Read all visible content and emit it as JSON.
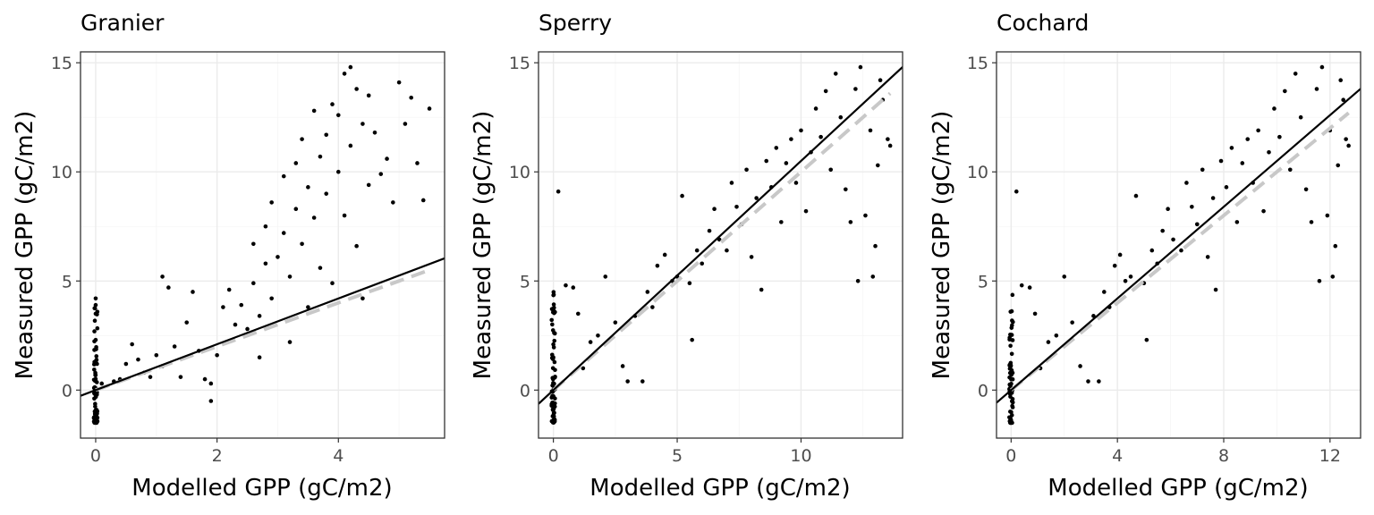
{
  "figure": {
    "ylabel": "Measured GPP (gC/m2)",
    "xlabel": "Modelled GPP (gC/m2)"
  },
  "chart_data": [
    {
      "type": "scatter",
      "title": "Granier",
      "xlabel": "Modelled GPP (gC/m2)",
      "ylabel": "Measured GPP (gC/m2)",
      "xlim": [
        -0.25,
        5.75
      ],
      "ylim": [
        -2.2,
        15.5
      ],
      "xticks": [
        0,
        2,
        4
      ],
      "yticks": [
        0,
        5,
        10,
        15
      ],
      "grid": true,
      "identity_line": {
        "slope": 1,
        "intercept": 0,
        "x_range": [
          0,
          5.45
        ],
        "color": "#c8c8c8",
        "style": "dashed"
      },
      "fit_line": {
        "slope": 1.05,
        "intercept": 0.0,
        "color": "#000000",
        "style": "solid"
      },
      "zero_cluster": {
        "x": 0.0,
        "y_range": [
          -1.5,
          4.2
        ]
      },
      "points": [
        [
          0.0,
          4.2
        ],
        [
          0.0,
          3.9
        ],
        [
          0.0,
          3.5
        ],
        [
          0.0,
          2.3
        ],
        [
          0.1,
          0.3
        ],
        [
          0.3,
          0.4
        ],
        [
          0.4,
          0.5
        ],
        [
          0.5,
          1.2
        ],
        [
          0.6,
          2.1
        ],
        [
          0.7,
          1.4
        ],
        [
          0.8,
          0.8
        ],
        [
          0.9,
          0.6
        ],
        [
          1.0,
          1.6
        ],
        [
          1.1,
          1.1
        ],
        [
          1.1,
          5.2
        ],
        [
          1.2,
          4.7
        ],
        [
          1.3,
          2.0
        ],
        [
          1.4,
          0.6
        ],
        [
          1.5,
          3.1
        ],
        [
          1.6,
          4.5
        ],
        [
          1.7,
          1.8
        ],
        [
          1.8,
          0.5
        ],
        [
          1.9,
          0.3
        ],
        [
          1.9,
          -0.5
        ],
        [
          2.0,
          1.6
        ],
        [
          2.1,
          3.8
        ],
        [
          2.2,
          4.6
        ],
        [
          2.3,
          3.0
        ],
        [
          2.4,
          3.9
        ],
        [
          2.5,
          2.8
        ],
        [
          2.6,
          4.9
        ],
        [
          2.6,
          6.7
        ],
        [
          2.7,
          3.4
        ],
        [
          2.7,
          1.5
        ],
        [
          2.8,
          5.8
        ],
        [
          2.8,
          7.5
        ],
        [
          2.9,
          4.2
        ],
        [
          2.9,
          8.6
        ],
        [
          3.0,
          6.1
        ],
        [
          3.1,
          9.8
        ],
        [
          3.1,
          7.2
        ],
        [
          3.2,
          2.2
        ],
        [
          3.2,
          5.2
        ],
        [
          3.3,
          8.3
        ],
        [
          3.3,
          10.4
        ],
        [
          3.4,
          6.7
        ],
        [
          3.4,
          11.5
        ],
        [
          3.5,
          9.3
        ],
        [
          3.5,
          3.8
        ],
        [
          3.6,
          12.8
        ],
        [
          3.6,
          7.9
        ],
        [
          3.7,
          10.7
        ],
        [
          3.7,
          5.6
        ],
        [
          3.8,
          11.7
        ],
        [
          3.8,
          9.0
        ],
        [
          3.9,
          13.1
        ],
        [
          3.9,
          4.9
        ],
        [
          4.0,
          10.0
        ],
        [
          4.0,
          12.6
        ],
        [
          4.1,
          14.5
        ],
        [
          4.1,
          8.0
        ],
        [
          4.2,
          14.8
        ],
        [
          4.2,
          11.2
        ],
        [
          4.3,
          13.8
        ],
        [
          4.3,
          6.6
        ],
        [
          4.4,
          12.2
        ],
        [
          4.4,
          4.2
        ],
        [
          4.5,
          13.5
        ],
        [
          4.5,
          9.4
        ],
        [
          4.6,
          11.8
        ],
        [
          4.7,
          9.9
        ],
        [
          4.8,
          10.6
        ],
        [
          4.9,
          8.6
        ],
        [
          5.0,
          14.1
        ],
        [
          5.1,
          12.2
        ],
        [
          5.2,
          13.4
        ],
        [
          5.3,
          10.4
        ],
        [
          5.4,
          8.7
        ],
        [
          5.5,
          12.9
        ]
      ]
    },
    {
      "type": "scatter",
      "title": "Sperry",
      "xlabel": "Modelled GPP (gC/m2)",
      "ylabel": "Measured GPP (gC/m2)",
      "xlim": [
        -0.6,
        14.1
      ],
      "ylim": [
        -2.2,
        15.5
      ],
      "xticks": [
        0,
        5,
        10
      ],
      "yticks": [
        0,
        5,
        10,
        15
      ],
      "grid": true,
      "identity_line": {
        "slope": 1,
        "intercept": 0,
        "x_range": [
          0,
          13.6
        ],
        "color": "#c8c8c8",
        "style": "dashed"
      },
      "fit_line": {
        "slope": 1.05,
        "intercept": 0.0,
        "color": "#000000",
        "style": "solid"
      },
      "zero_cluster": {
        "x": 0.0,
        "y_range": [
          -1.5,
          4.8
        ]
      },
      "points": [
        [
          0.2,
          9.1
        ],
        [
          0.5,
          4.8
        ],
        [
          0.8,
          4.7
        ],
        [
          1.0,
          3.5
        ],
        [
          1.2,
          1.0
        ],
        [
          1.5,
          2.2
        ],
        [
          1.8,
          2.5
        ],
        [
          2.1,
          5.2
        ],
        [
          2.5,
          3.1
        ],
        [
          2.8,
          1.1
        ],
        [
          3.0,
          0.4
        ],
        [
          3.3,
          3.4
        ],
        [
          3.6,
          0.4
        ],
        [
          3.8,
          4.5
        ],
        [
          4.0,
          3.8
        ],
        [
          4.2,
          5.7
        ],
        [
          4.5,
          6.2
        ],
        [
          4.8,
          5.0
        ],
        [
          5.0,
          5.2
        ],
        [
          5.2,
          8.9
        ],
        [
          5.5,
          4.9
        ],
        [
          5.6,
          2.3
        ],
        [
          5.8,
          6.4
        ],
        [
          6.0,
          5.8
        ],
        [
          6.3,
          7.3
        ],
        [
          6.5,
          8.3
        ],
        [
          6.7,
          6.9
        ],
        [
          7.0,
          6.4
        ],
        [
          7.2,
          9.5
        ],
        [
          7.4,
          8.4
        ],
        [
          7.6,
          7.6
        ],
        [
          7.8,
          10.1
        ],
        [
          8.0,
          6.1
        ],
        [
          8.2,
          8.8
        ],
        [
          8.4,
          4.6
        ],
        [
          8.6,
          10.5
        ],
        [
          8.8,
          9.3
        ],
        [
          9.0,
          11.1
        ],
        [
          9.2,
          7.7
        ],
        [
          9.4,
          10.4
        ],
        [
          9.6,
          11.5
        ],
        [
          9.8,
          9.5
        ],
        [
          10.0,
          11.9
        ],
        [
          10.2,
          8.2
        ],
        [
          10.4,
          10.9
        ],
        [
          10.6,
          12.9
        ],
        [
          10.8,
          11.6
        ],
        [
          11.0,
          13.7
        ],
        [
          11.2,
          10.1
        ],
        [
          11.4,
          14.5
        ],
        [
          11.6,
          12.5
        ],
        [
          11.8,
          9.2
        ],
        [
          12.0,
          7.7
        ],
        [
          12.2,
          13.8
        ],
        [
          12.3,
          5.0
        ],
        [
          12.4,
          14.8
        ],
        [
          12.6,
          8.0
        ],
        [
          12.8,
          11.9
        ],
        [
          12.9,
          5.2
        ],
        [
          13.0,
          6.6
        ],
        [
          13.1,
          10.3
        ],
        [
          13.2,
          14.2
        ],
        [
          13.3,
          13.3
        ],
        [
          13.5,
          11.5
        ],
        [
          13.6,
          11.2
        ]
      ]
    },
    {
      "type": "scatter",
      "title": "Cochard",
      "xlabel": "Modelled GPP (gC/m2)",
      "ylabel": "Measured GPP (gC/m2)",
      "xlim": [
        -0.55,
        13.15
      ],
      "ylim": [
        -2.2,
        15.5
      ],
      "xticks": [
        0,
        4,
        8,
        12
      ],
      "yticks": [
        0,
        5,
        10,
        15
      ],
      "grid": true,
      "identity_line": {
        "slope": 1,
        "intercept": 0,
        "x_range": [
          0,
          12.7
        ],
        "color": "#c8c8c8",
        "style": "dashed"
      },
      "fit_line": {
        "slope": 1.05,
        "intercept": 0.0,
        "color": "#000000",
        "style": "solid"
      },
      "zero_cluster": {
        "x": 0.0,
        "y_range": [
          -1.5,
          4.8
        ]
      },
      "points": [
        [
          0.2,
          9.1
        ],
        [
          0.4,
          4.8
        ],
        [
          0.7,
          4.7
        ],
        [
          0.9,
          3.5
        ],
        [
          1.1,
          1.0
        ],
        [
          1.4,
          2.2
        ],
        [
          1.7,
          2.5
        ],
        [
          2.0,
          5.2
        ],
        [
          2.3,
          3.1
        ],
        [
          2.6,
          1.1
        ],
        [
          2.9,
          0.4
        ],
        [
          3.1,
          3.4
        ],
        [
          3.3,
          0.4
        ],
        [
          3.5,
          4.5
        ],
        [
          3.7,
          3.8
        ],
        [
          3.9,
          5.7
        ],
        [
          4.1,
          6.2
        ],
        [
          4.3,
          5.0
        ],
        [
          4.5,
          5.2
        ],
        [
          4.7,
          8.9
        ],
        [
          5.0,
          4.9
        ],
        [
          5.1,
          2.3
        ],
        [
          5.3,
          6.4
        ],
        [
          5.5,
          5.8
        ],
        [
          5.7,
          7.3
        ],
        [
          5.9,
          8.3
        ],
        [
          6.1,
          6.9
        ],
        [
          6.4,
          6.4
        ],
        [
          6.6,
          9.5
        ],
        [
          6.8,
          8.4
        ],
        [
          7.0,
          7.6
        ],
        [
          7.2,
          10.1
        ],
        [
          7.4,
          6.1
        ],
        [
          7.6,
          8.8
        ],
        [
          7.7,
          4.6
        ],
        [
          7.9,
          10.5
        ],
        [
          8.1,
          9.3
        ],
        [
          8.3,
          11.1
        ],
        [
          8.5,
          7.7
        ],
        [
          8.7,
          10.4
        ],
        [
          8.9,
          11.5
        ],
        [
          9.1,
          9.5
        ],
        [
          9.3,
          11.9
        ],
        [
          9.5,
          8.2
        ],
        [
          9.7,
          10.9
        ],
        [
          9.9,
          12.9
        ],
        [
          10.1,
          11.6
        ],
        [
          10.3,
          13.7
        ],
        [
          10.5,
          10.1
        ],
        [
          10.7,
          14.5
        ],
        [
          10.9,
          12.5
        ],
        [
          11.1,
          9.2
        ],
        [
          11.3,
          7.7
        ],
        [
          11.5,
          13.8
        ],
        [
          11.6,
          5.0
        ],
        [
          11.7,
          14.8
        ],
        [
          11.9,
          8.0
        ],
        [
          12.0,
          11.9
        ],
        [
          12.1,
          5.2
        ],
        [
          12.2,
          6.6
        ],
        [
          12.3,
          10.3
        ],
        [
          12.4,
          14.2
        ],
        [
          12.5,
          13.3
        ],
        [
          12.6,
          11.5
        ],
        [
          12.7,
          11.2
        ]
      ]
    }
  ]
}
